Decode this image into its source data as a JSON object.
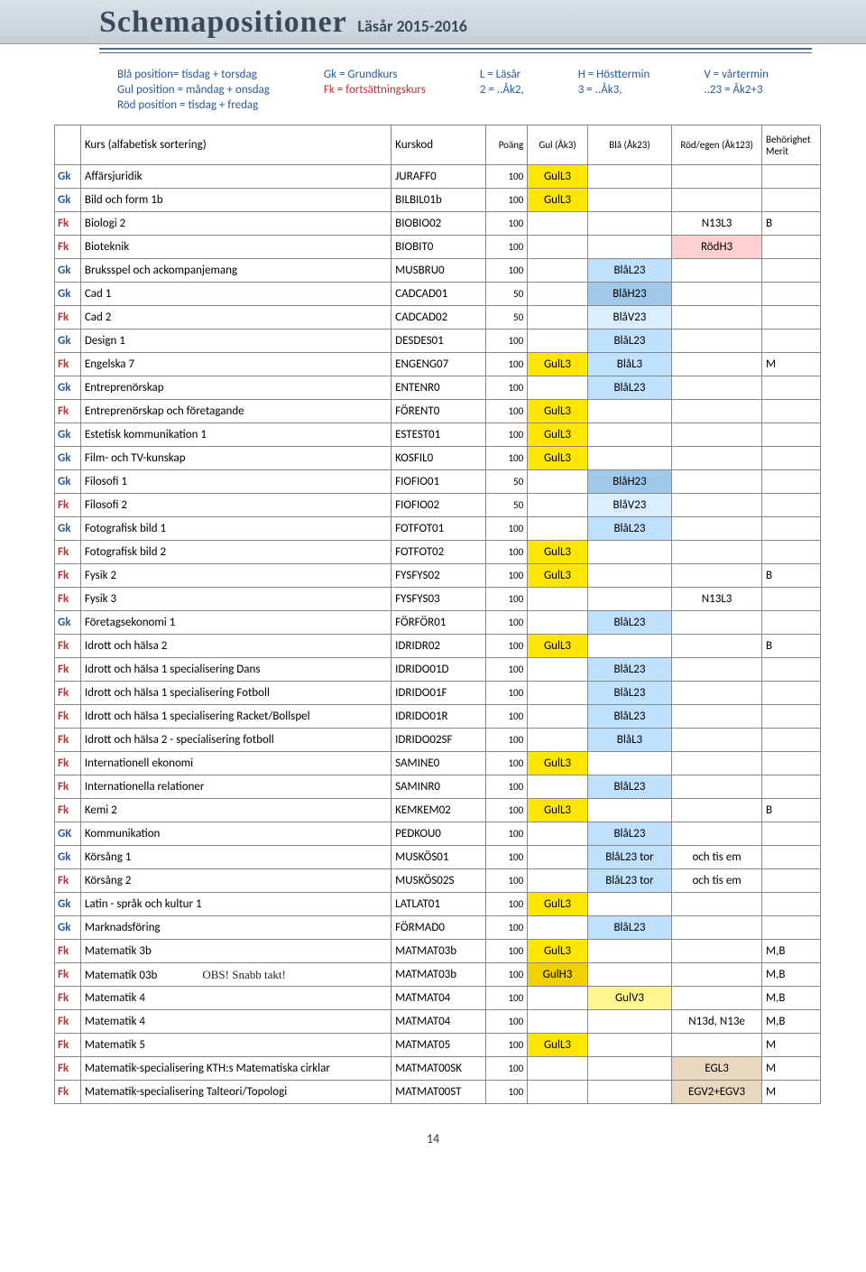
{
  "header": {
    "title": "Schemapositioner",
    "subtitle": "Läsår 2015-2016"
  },
  "legend": {
    "col1": [
      "Blå position= tisdag + torsdag",
      "Gul position = måndag + onsdag",
      "Röd position = tisdag + fredag"
    ],
    "col2_gk": "Gk = Grundkurs",
    "col2_fk": "Fk = fortsättningskurs",
    "col3": [
      "L  = Läsår",
      "2 = ..Åk2,"
    ],
    "col4": [
      "H = Hösttermin",
      "3 = ..Åk3,"
    ],
    "col5": [
      "V =  vårtermin",
      "..23 = Åk2+3"
    ]
  },
  "columns": {
    "kurs": "Kurs (alfabetisk sortering)",
    "kurskod": "Kurskod",
    "poang": "Poäng",
    "gul": "Gul (Åk3)",
    "bla": "Blå (Åk23)",
    "rod": "Röd/egen (Åk123)",
    "merit": "Behörighet Merit"
  },
  "note": "OBS! Snabb takt!",
  "page": "14",
  "rows": [
    {
      "t": "Gk",
      "name": "Affärsjuridik",
      "code": "JURAFF0",
      "p": "100",
      "gul": "GulL3",
      "gulc": "bg-gul",
      "bla": "",
      "blac": "",
      "rod": "",
      "rodc": "",
      "m": ""
    },
    {
      "t": "Gk",
      "name": "Bild och form 1b",
      "code": "BILBIL01b",
      "p": "100",
      "gul": "GulL3",
      "gulc": "bg-gul",
      "bla": "",
      "blac": "",
      "rod": "",
      "rodc": "",
      "m": ""
    },
    {
      "t": "Fk",
      "name": "Biologi 2",
      "code": "BIOBIO02",
      "p": "100",
      "gul": "",
      "gulc": "",
      "bla": "",
      "blac": "",
      "rod": "N13L3",
      "rodc": "",
      "m": "B"
    },
    {
      "t": "Fk",
      "name": "Bioteknik",
      "code": "BIOBIT0",
      "p": "100",
      "gul": "",
      "gulc": "",
      "bla": "",
      "blac": "",
      "rod": "RödH3",
      "rodc": "bg-rod",
      "m": ""
    },
    {
      "t": "Gk",
      "name": "Bruksspel och ackompanjemang",
      "code": "MUSBRU0",
      "p": "100",
      "gul": "",
      "gulc": "",
      "bla": "BlåL23",
      "blac": "bg-bla",
      "rod": "",
      "rodc": "",
      "m": ""
    },
    {
      "t": "Gk",
      "name": "Cad 1",
      "code": "CADCAD01",
      "p": "50",
      "gul": "",
      "gulc": "",
      "bla": "BlåH23",
      "blac": "bg-bla-h",
      "rod": "",
      "rodc": "",
      "m": ""
    },
    {
      "t": "Fk",
      "name": "Cad 2",
      "code": "CADCAD02",
      "p": "50",
      "gul": "",
      "gulc": "",
      "bla": "BlåV23",
      "blac": "bg-bla-v",
      "rod": "",
      "rodc": "",
      "m": ""
    },
    {
      "t": "Gk",
      "name": "Design 1",
      "code": "DESDES01",
      "p": "100",
      "gul": "",
      "gulc": "",
      "bla": "BlåL23",
      "blac": "bg-bla",
      "rod": "",
      "rodc": "",
      "m": ""
    },
    {
      "t": "Fk",
      "name": "Engelska 7",
      "code": "ENGENG07",
      "p": "100",
      "gul": "GulL3",
      "gulc": "bg-gul",
      "bla": "BlåL3",
      "blac": "bg-bla",
      "rod": "",
      "rodc": "",
      "m": "M"
    },
    {
      "t": "Gk",
      "name": "Entreprenörskap",
      "code": "ENTENR0",
      "p": "100",
      "gul": "",
      "gulc": "",
      "bla": "BlåL23",
      "blac": "bg-bla",
      "rod": "",
      "rodc": "",
      "m": ""
    },
    {
      "t": "Fk",
      "name": "Entreprenörskap och företagande",
      "code": "FÖRENT0",
      "p": "100",
      "gul": "GulL3",
      "gulc": "bg-gul",
      "bla": "",
      "blac": "",
      "rod": "",
      "rodc": "",
      "m": ""
    },
    {
      "t": "Gk",
      "name": "Estetisk kommunikation 1",
      "code": "ESTEST01",
      "p": "100",
      "gul": "GulL3",
      "gulc": "bg-gul",
      "bla": "",
      "blac": "",
      "rod": "",
      "rodc": "",
      "m": ""
    },
    {
      "t": "Gk",
      "name": "Film- och TV-kunskap",
      "code": "KOSFIL0",
      "p": "100",
      "gul": "GulL3",
      "gulc": "bg-gul",
      "bla": "",
      "blac": "",
      "rod": "",
      "rodc": "",
      "m": ""
    },
    {
      "t": "Gk",
      "name": "Filosofi 1",
      "code": "FIOFIO01",
      "p": "50",
      "gul": "",
      "gulc": "",
      "bla": "BlåH23",
      "blac": "bg-bla-h",
      "rod": "",
      "rodc": "",
      "m": ""
    },
    {
      "t": "Fk",
      "name": "Filosofi 2",
      "code": "FIOFIO02",
      "p": "50",
      "gul": "",
      "gulc": "",
      "bla": "BlåV23",
      "blac": "bg-bla-v",
      "rod": "",
      "rodc": "",
      "m": ""
    },
    {
      "t": "Gk",
      "name": "Fotografisk bild 1",
      "code": "FOTFOT01",
      "p": "100",
      "gul": "",
      "gulc": "",
      "bla": "BlåL23",
      "blac": "bg-bla",
      "rod": "",
      "rodc": "",
      "m": ""
    },
    {
      "t": "Fk",
      "name": "Fotografisk bild 2",
      "code": "FOTFOT02",
      "p": "100",
      "gul": "GulL3",
      "gulc": "bg-gul",
      "bla": "",
      "blac": "",
      "rod": "",
      "rodc": "",
      "m": ""
    },
    {
      "t": "Fk",
      "name": "Fysik 2",
      "code": "FYSFYS02",
      "p": "100",
      "gul": "GulL3",
      "gulc": "bg-gul",
      "bla": "",
      "blac": "",
      "rod": "",
      "rodc": "",
      "m": "B"
    },
    {
      "t": "Fk",
      "name": "Fysik 3",
      "code": "FYSFYS03",
      "p": "100",
      "gul": "",
      "gulc": "",
      "bla": "",
      "blac": "",
      "rod": "N13L3",
      "rodc": "",
      "m": ""
    },
    {
      "t": "Gk",
      "name": "Företagsekonomi 1",
      "code": "FÖRFÖR01",
      "p": "100",
      "gul": "",
      "gulc": "",
      "bla": "BlåL23",
      "blac": "bg-bla",
      "rod": "",
      "rodc": "",
      "m": ""
    },
    {
      "t": "Fk",
      "name": "Idrott och hälsa 2",
      "code": "IDRIDR02",
      "p": "100",
      "gul": "GulL3",
      "gulc": "bg-gul",
      "bla": "",
      "blac": "",
      "rod": "",
      "rodc": "",
      "m": "B"
    },
    {
      "t": "Fk",
      "name": "Idrott och hälsa 1 specialisering Dans",
      "code": "IDRIDO01D",
      "p": "100",
      "gul": "",
      "gulc": "",
      "bla": "BlåL23",
      "blac": "bg-bla",
      "rod": "",
      "rodc": "",
      "m": ""
    },
    {
      "t": "Fk",
      "name": "Idrott och hälsa 1 specialisering Fotboll",
      "code": "IDRIDO01F",
      "p": "100",
      "gul": "",
      "gulc": "",
      "bla": "BlåL23",
      "blac": "bg-bla",
      "rod": "",
      "rodc": "",
      "m": ""
    },
    {
      "t": "Fk",
      "name": "Idrott och hälsa 1 specialisering Racket/Bollspel",
      "code": "IDRIDO01R",
      "p": "100",
      "gul": "",
      "gulc": "",
      "bla": "BlåL23",
      "blac": "bg-bla",
      "rod": "",
      "rodc": "",
      "m": ""
    },
    {
      "t": "Fk",
      "name": "Idrott och hälsa 2 - specialisering fotboll",
      "code": "IDRIDO02SF",
      "p": "100",
      "gul": "",
      "gulc": "",
      "bla": "BlåL3",
      "blac": "bg-bla",
      "rod": "",
      "rodc": "",
      "m": ""
    },
    {
      "t": "Fk",
      "name": "Internationell ekonomi",
      "code": "SAMINE0",
      "p": "100",
      "gul": "GulL3",
      "gulc": "bg-gul",
      "bla": "",
      "blac": "",
      "rod": "",
      "rodc": "",
      "m": ""
    },
    {
      "t": "Fk",
      "name": "Internationella relationer",
      "code": "SAMINR0",
      "p": "100",
      "gul": "",
      "gulc": "",
      "bla": "BlåL23",
      "blac": "bg-bla",
      "rod": "",
      "rodc": "",
      "m": ""
    },
    {
      "t": "Fk",
      "name": "Kemi 2",
      "code": "KEMKEM02",
      "p": "100",
      "gul": "GulL3",
      "gulc": "bg-gul",
      "bla": "",
      "blac": "",
      "rod": "",
      "rodc": "",
      "m": "B"
    },
    {
      "t": "GK",
      "name": "Kommunikation",
      "code": "PEDKOU0",
      "p": "100",
      "gul": "",
      "gulc": "",
      "bla": "BlåL23",
      "blac": "bg-bla",
      "rod": "",
      "rodc": "",
      "m": ""
    },
    {
      "t": "Gk",
      "name": "Körsång 1",
      "code": "MUSKÖS01",
      "p": "100",
      "gul": "",
      "gulc": "",
      "bla": "BlåL23 tor",
      "blac": "bg-bla",
      "rod": "och tis em",
      "rodc": "",
      "m": ""
    },
    {
      "t": "Fk",
      "name": "Körsång 2",
      "code": "MUSKÖS02S",
      "p": "100",
      "gul": "",
      "gulc": "",
      "bla": "BlåL23 tor",
      "blac": "bg-bla",
      "rod": "och tis em",
      "rodc": "",
      "m": ""
    },
    {
      "t": "Gk",
      "name": "Latin - språk och kultur 1",
      "code": "LATLAT01",
      "p": "100",
      "gul": "GulL3",
      "gulc": "bg-gul",
      "bla": "",
      "blac": "",
      "rod": "",
      "rodc": "",
      "m": ""
    },
    {
      "t": "Gk",
      "name": "Marknadsföring",
      "code": "FÖRMAD0",
      "p": "100",
      "gul": "",
      "gulc": "",
      "bla": "BlåL23",
      "blac": "bg-bla",
      "rod": "",
      "rodc": "",
      "m": ""
    },
    {
      "t": "Fk",
      "name": "Matematik 3b",
      "code": "MATMAT03b",
      "p": "100",
      "gul": "GulL3",
      "gulc": "bg-gul",
      "bla": "",
      "blac": "",
      "rod": "",
      "rodc": "",
      "m": "M,B"
    },
    {
      "t": "Fk",
      "name": "Matematik 03b",
      "code": "MATMAT03b",
      "p": "100",
      "gul": "GulH3",
      "gulc": "bg-gul-h",
      "bla": "",
      "blac": "",
      "rod": "",
      "rodc": "",
      "m": "M,B",
      "note": true
    },
    {
      "t": "Fk",
      "name": "Matematik 4",
      "code": "MATMAT04",
      "p": "100",
      "gul": "",
      "gulc": "",
      "bla": "GulV3",
      "blac": "bg-gul-v",
      "rod": "",
      "rodc": "",
      "m": "M,B"
    },
    {
      "t": "Fk",
      "name": "Matematik 4",
      "code": "MATMAT04",
      "p": "100",
      "gul": "",
      "gulc": "",
      "bla": "",
      "blac": "",
      "rod": "N13d, N13e",
      "rodc": "",
      "m": "M,B"
    },
    {
      "t": "Fk",
      "name": "Matematik 5",
      "code": "MATMAT05",
      "p": "100",
      "gul": "GulL3",
      "gulc": "bg-gul",
      "bla": "",
      "blac": "",
      "rod": "",
      "rodc": "",
      "m": "M"
    },
    {
      "t": "Fk",
      "name": "Matematik-specialisering KTH:s Matematiska cirklar",
      "code": "MATMAT00SK",
      "p": "100",
      "gul": "",
      "gulc": "",
      "bla": "",
      "blac": "",
      "rod": "EGL3",
      "rodc": "bg-egl",
      "m": "M"
    },
    {
      "t": "Fk",
      "name": "Matematik-specialisering Talteori/Topologi",
      "code": "MATMAT00ST",
      "p": "100",
      "gul": "",
      "gulc": "",
      "bla": "",
      "blac": "",
      "rod": "EGV2+EGV3",
      "rodc": "bg-egl",
      "m": "M"
    }
  ]
}
